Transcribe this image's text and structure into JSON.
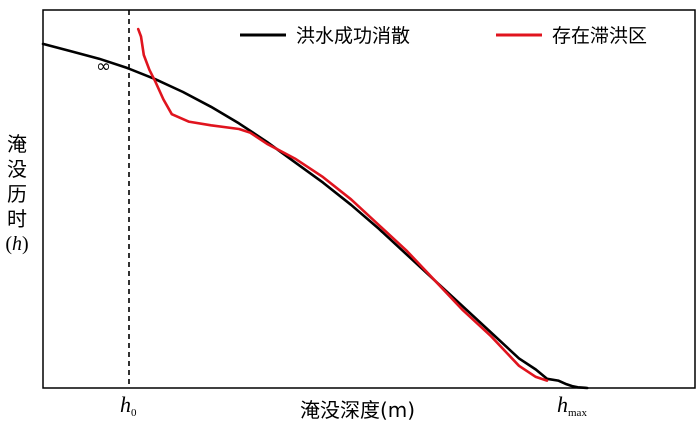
{
  "chart_data": {
    "type": "line",
    "title": "",
    "xlabel": "淹没深度(m)",
    "ylabel_chars": [
      "淹",
      "没",
      "历",
      "时"
    ],
    "ylabel_unit": "h",
    "x_ticks": [
      {
        "base": "h",
        "sub": "0"
      },
      {
        "base": "h",
        "sub": "max"
      }
    ],
    "annotation": "∞",
    "legend_position": "top-right",
    "grid": false,
    "series": [
      {
        "name": "洪水成功消散",
        "color": "#000000",
        "x": [
          0.0,
          0.05,
          0.1,
          0.15,
          0.2,
          0.25,
          0.3,
          0.35,
          0.4,
          0.45,
          0.5,
          0.55,
          0.6,
          0.65,
          0.7,
          0.75,
          0.8,
          0.85,
          0.88,
          0.9,
          0.92,
          0.935,
          0.945,
          0.955,
          0.962,
          0.968,
          0.972
        ],
        "y": [
          0.93,
          0.91,
          0.89,
          0.865,
          0.835,
          0.8,
          0.76,
          0.715,
          0.665,
          0.61,
          0.555,
          0.495,
          0.43,
          0.36,
          0.29,
          0.22,
          0.15,
          0.08,
          0.05,
          0.025,
          0.02,
          0.01,
          0.005,
          0.002,
          0.001,
          0.0005,
          0.0
        ]
      },
      {
        "name": "存在滞洪区",
        "color": "#e0141e",
        "x": [
          0.17,
          0.175,
          0.18,
          0.19,
          0.2,
          0.215,
          0.23,
          0.26,
          0.3,
          0.35,
          0.37,
          0.4,
          0.45,
          0.5,
          0.55,
          0.6,
          0.65,
          0.7,
          0.75,
          0.8,
          0.85,
          0.88,
          0.9
        ],
        "y": [
          0.97,
          0.95,
          0.9,
          0.86,
          0.83,
          0.78,
          0.74,
          0.72,
          0.71,
          0.7,
          0.69,
          0.66,
          0.62,
          0.57,
          0.51,
          0.44,
          0.37,
          0.29,
          0.21,
          0.14,
          0.06,
          0.03,
          0.02
        ]
      }
    ]
  }
}
